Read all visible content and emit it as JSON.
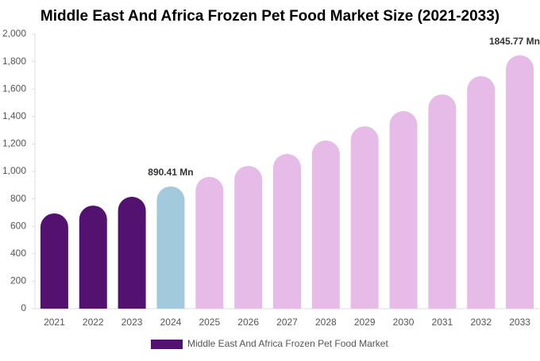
{
  "chart_data": {
    "type": "bar",
    "title": "Middle East And Africa Frozen Pet Food Market Size (2021-2033)",
    "categories": [
      "2021",
      "2022",
      "2023",
      "2024",
      "2025",
      "2026",
      "2027",
      "2028",
      "2029",
      "2030",
      "2031",
      "2032",
      "2033"
    ],
    "series": [
      {
        "name": "Middle East And Africa Frozen Pet Food Market",
        "color": "#541270",
        "values": [
          694,
          751,
          815,
          890.41,
          960,
          1040,
          1127,
          1225,
          1329,
          1439,
          1561,
          1694,
          1845.77
        ],
        "value_labels": [
          null,
          null,
          null,
          "890.41 Mn",
          null,
          null,
          null,
          null,
          null,
          null,
          null,
          null,
          "1845.77 Mn"
        ],
        "colors": [
          "#541270",
          "#541270",
          "#541270",
          "#a3c9dd",
          "#e6bbe8",
          "#e6bbe8",
          "#e6bbe8",
          "#e6bbe8",
          "#e6bbe8",
          "#e6bbe8",
          "#e6bbe8",
          "#e6bbe8",
          "#e6bbe8"
        ]
      }
    ],
    "ylim": [
      0,
      2000
    ],
    "yticks": [
      0,
      200,
      400,
      600,
      800,
      {
        "value": 1000,
        "label": "1,000"
      },
      {
        "value": 1200,
        "label": "1,200"
      },
      {
        "value": 1400,
        "label": "1,400"
      },
      {
        "value": 1600,
        "label": "1,600"
      },
      {
        "value": 1800,
        "label": "1,800"
      },
      {
        "value": 2000,
        "label": "2,000"
      }
    ],
    "grid": false,
    "legend": "bottom"
  }
}
